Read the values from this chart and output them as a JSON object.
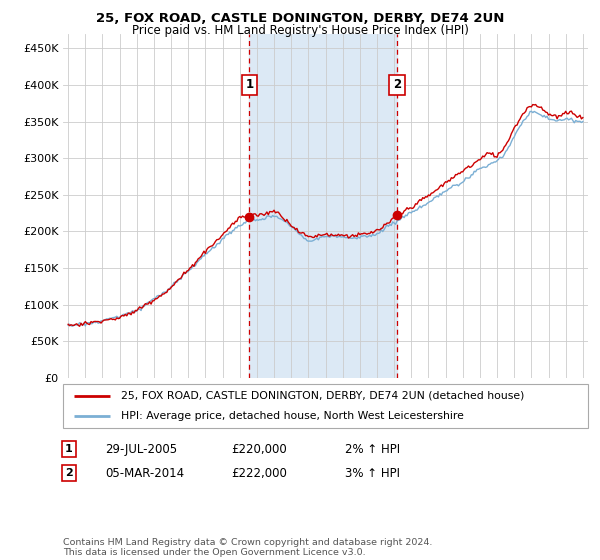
{
  "title1": "25, FOX ROAD, CASTLE DONINGTON, DERBY, DE74 2UN",
  "title2": "Price paid vs. HM Land Registry's House Price Index (HPI)",
  "legend_line1": "25, FOX ROAD, CASTLE DONINGTON, DERBY, DE74 2UN (detached house)",
  "legend_line2": "HPI: Average price, detached house, North West Leicestershire",
  "footnote": "Contains HM Land Registry data © Crown copyright and database right 2024.\nThis data is licensed under the Open Government Licence v3.0.",
  "marker1_label": "1",
  "marker1_date": "29-JUL-2005",
  "marker1_price": "£220,000",
  "marker1_hpi": "2% ↑ HPI",
  "marker1_x": 2005.57,
  "marker1_y": 220000,
  "marker2_label": "2",
  "marker2_date": "05-MAR-2014",
  "marker2_price": "£222,000",
  "marker2_hpi": "3% ↑ HPI",
  "marker2_x": 2014.17,
  "marker2_y": 222000,
  "hpi_color": "#7bafd4",
  "price_color": "#cc0000",
  "shaded_color": "#dce9f5",
  "grid_color": "#cccccc",
  "background_color": "#ffffff",
  "ylim": [
    0,
    470000
  ],
  "xlim": [
    1994.7,
    2025.3
  ],
  "yticks": [
    0,
    50000,
    100000,
    150000,
    200000,
    250000,
    300000,
    350000,
    400000,
    450000
  ],
  "ytick_labels": [
    "£0",
    "£50K",
    "£100K",
    "£150K",
    "£200K",
    "£250K",
    "£300K",
    "£350K",
    "£400K",
    "£450K"
  ],
  "xticks": [
    1995,
    1996,
    1997,
    1998,
    1999,
    2000,
    2001,
    2002,
    2003,
    2004,
    2005,
    2006,
    2007,
    2008,
    2009,
    2010,
    2011,
    2012,
    2013,
    2014,
    2015,
    2016,
    2017,
    2018,
    2019,
    2020,
    2021,
    2022,
    2023,
    2024,
    2025
  ]
}
